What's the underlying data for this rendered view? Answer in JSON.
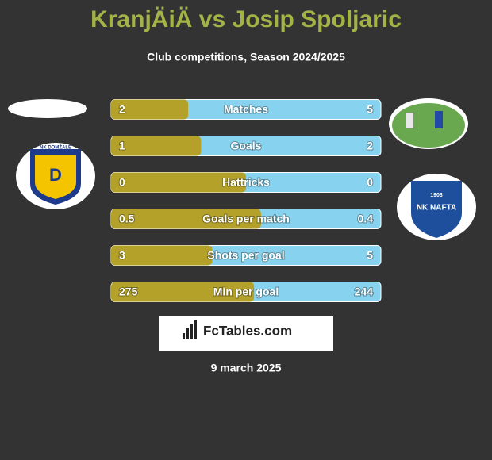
{
  "header": {
    "title": "KranjÄiÄ vs Josip Spoljaric",
    "subtitle": "Club competitions, Season 2024/2025"
  },
  "logos": {
    "left": {
      "top_text": "NK DOMŽALE",
      "letter": "D"
    },
    "right": {
      "year": "1903",
      "name": "NK NAFTA"
    }
  },
  "rows": [
    {
      "label": "Matches",
      "left": 2,
      "right": 5
    },
    {
      "label": "Goals",
      "left": 1,
      "right": 2
    },
    {
      "label": "Hattricks",
      "left": 0,
      "right": 0
    },
    {
      "label": "Goals per match",
      "left": 0.5,
      "right": 0.4
    },
    {
      "label": "Shots per goal",
      "left": 3,
      "right": 5
    },
    {
      "label": "Min per goal",
      "left": 275,
      "right": 244
    }
  ],
  "footer": {
    "brand": "FcTables.com",
    "date": "9 march 2025"
  }
}
